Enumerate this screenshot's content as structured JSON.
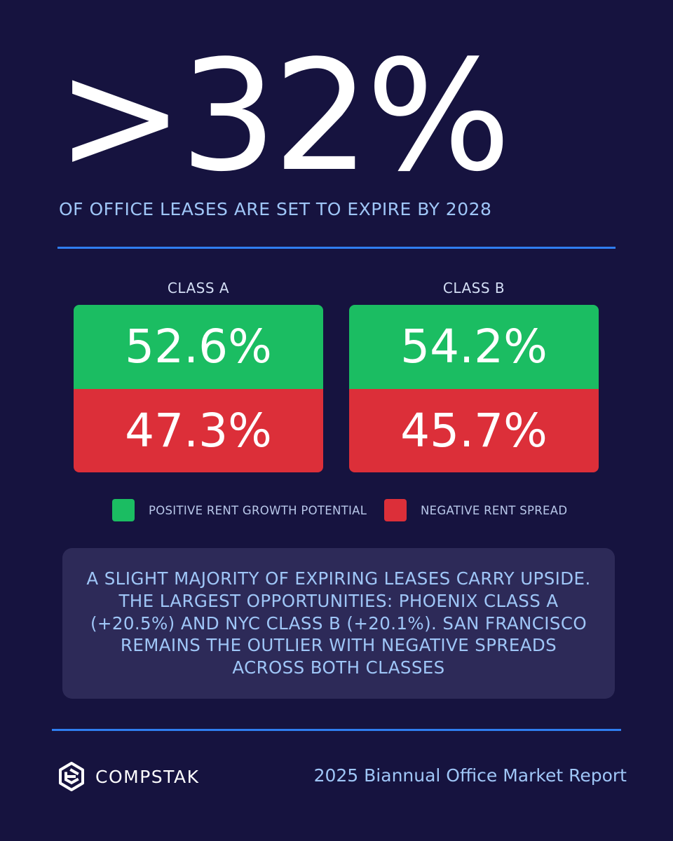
{
  "headline": ">32%",
  "subhead": "OF OFFICE LEASES ARE SET TO EXPIRE BY 2028",
  "colors": {
    "background": "#16133f",
    "accent_rule": "#2f7df0",
    "positive": "#1bbd62",
    "negative": "#dc2f39",
    "note_bg": "#2d2a58"
  },
  "chart_data": {
    "type": "table",
    "categories": [
      "CLASS A",
      "CLASS B"
    ],
    "series": [
      {
        "name": "POSITIVE RENT GROWTH POTENTIAL",
        "values": [
          52.6,
          54.2
        ],
        "labels": [
          "52.6%",
          "54.2%"
        ],
        "color": "#1bbd62"
      },
      {
        "name": "NEGATIVE RENT SPREAD",
        "values": [
          47.3,
          45.7
        ],
        "labels": [
          "47.3%",
          "45.7%"
        ],
        "color": "#dc2f39"
      }
    ]
  },
  "note": "A SLIGHT MAJORITY OF EXPIRING LEASES CARRY UPSIDE. THE LARGEST OPPORTUNITIES: PHOENIX CLASS A (+20.5%) AND NYC CLASS B (+20.1%). SAN FRANCISCO REMAINS THE OUTLIER WITH NEGATIVE SPREADS ACROSS BOTH CLASSES",
  "footer": {
    "logo_icon": "compstak-hexagon-icon",
    "brand": "COMPSTAK",
    "report": "2025 Biannual Office Market Report"
  }
}
